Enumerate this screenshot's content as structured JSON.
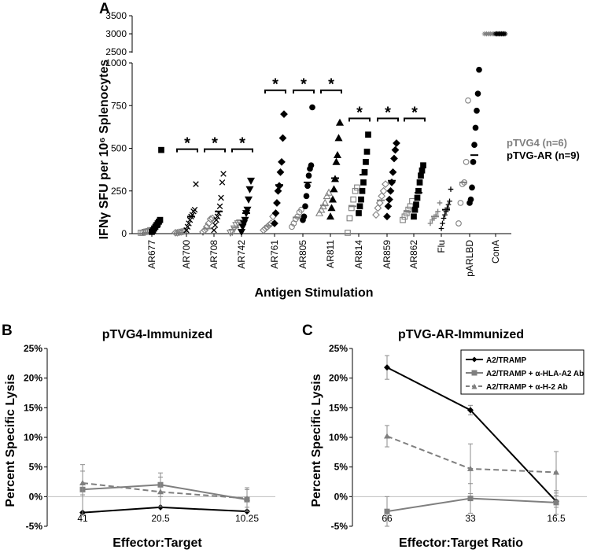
{
  "chart_data": [
    {
      "panel": "A",
      "type": "scatter",
      "xlabel": "Antigen Stimulation",
      "ylabel": "IFNγ SFU per 10⁶ Splenocytes",
      "ylim_lower": [
        0,
        1000
      ],
      "ylim_upper": [
        2500,
        3500
      ],
      "yticks_lower": [
        "0",
        "250",
        "500",
        "750",
        "1000"
      ],
      "yticks_upper": [
        "2500",
        "3000",
        "3500"
      ],
      "categories": [
        "AR677",
        "AR700",
        "AR708",
        "AR742",
        "AR761",
        "AR805",
        "AR811",
        "AR814",
        "AR859",
        "AR862",
        "Flu",
        "pARLBD",
        "ConA"
      ],
      "significance_marker": "*",
      "significant_categories": [
        "AR700",
        "AR708",
        "AR742",
        "AR761",
        "AR805",
        "AR811",
        "AR814",
        "AR859",
        "AR862"
      ],
      "legend": [
        {
          "name": "pTVG4 (n=6)",
          "color": "#808080"
        },
        {
          "name": "pTVG-AR (n=9)",
          "color": "#000000"
        }
      ],
      "series": [
        {
          "name": "pTVG4 (n=6)",
          "color": "#808080",
          "values": {
            "AR677": [
              5,
              5,
              10,
              12,
              15,
              20
            ],
            "AR700": [
              5,
              5,
              8,
              10,
              12,
              15
            ],
            "AR708": [
              10,
              20,
              40,
              60,
              85,
              90
            ],
            "AR742": [
              5,
              10,
              30,
              50,
              60,
              65
            ],
            "AR761": [
              20,
              30,
              40,
              50,
              60,
              100
            ],
            "AR805": [
              40,
              60,
              85,
              100,
              125,
              140
            ],
            "AR811": [
              120,
              140,
              160,
              180,
              220,
              240
            ],
            "AR814": [
              5,
              90,
              150,
              200,
              250,
              270
            ],
            "AR859": [
              110,
              150,
              180,
              220,
              250,
              290
            ],
            "AR862": [
              80,
              100,
              120,
              140,
              160,
              190
            ],
            "Flu": [
              60,
              80,
              90,
              110,
              130,
              180
            ],
            "pARLBD": [
              60,
              180,
              290,
              300,
              420,
              780
            ],
            "ConA": [
              3000,
              3000,
              3000,
              3000,
              3000,
              3000
            ]
          },
          "means": {
            "AR677": 5,
            "AR700": 5,
            "AR708": 30,
            "AR742": 35,
            "AR761": 45,
            "AR805": 95,
            "AR811": 165,
            "AR814": 160,
            "AR859": 195,
            "AR862": 130,
            "Flu": 100,
            "pARLBD": 300,
            "ConA": 3000
          }
        },
        {
          "name": "pTVG-AR (n=9)",
          "color": "#000000",
          "values": {
            "AR677": [
              10,
              20,
              30,
              40,
              50,
              60,
              70,
              80,
              490
            ],
            "AR700": [
              20,
              40,
              60,
              80,
              100,
              110,
              130,
              140,
              290
            ],
            "AR708": [
              20,
              50,
              80,
              100,
              120,
              160,
              210,
              300,
              350
            ],
            "AR742": [
              10,
              40,
              60,
              80,
              120,
              140,
              200,
              260,
              310
            ],
            "AR761": [
              60,
              120,
              180,
              250,
              280,
              360,
              420,
              560,
              700
            ],
            "AR805": [
              80,
              100,
              160,
              220,
              280,
              340,
              380,
              400,
              740
            ],
            "AR811": [
              100,
              150,
              200,
              260,
              320,
              420,
              460,
              560,
              650
            ],
            "AR814": [
              120,
              160,
              200,
              250,
              300,
              360,
              420,
              480,
              580
            ],
            "AR859": [
              100,
              160,
              200,
              250,
              300,
              360,
              440,
              490,
              530
            ],
            "AR862": [
              100,
              140,
              170,
              210,
              250,
              300,
              340,
              370,
              400
            ],
            "Flu": [
              30,
              60,
              90,
              110,
              130,
              150,
              170,
              190,
              260
            ],
            "pARLBD": [
              180,
              200,
              270,
              420,
              520,
              620,
              720,
              820,
              960
            ],
            "ConA": [
              3000,
              3000,
              3000,
              3000,
              3000,
              3000,
              3000,
              3000,
              3000
            ]
          },
          "means": {
            "AR677": 40,
            "AR700": 100,
            "AR708": 130,
            "AR742": 120,
            "AR761": 285,
            "AR805": 300,
            "AR811": 325,
            "AR814": 345,
            "AR859": 310,
            "AR862": 240,
            "Flu": 140,
            "pARLBD": 460,
            "ConA": 3000
          }
        }
      ]
    },
    {
      "panel": "B",
      "type": "line",
      "title": "pTVG4-Immunized",
      "xlabel": "Effector:Target",
      "ylabel": "Percent Specific Lysis",
      "categories": [
        "41",
        "20.5",
        "10.25"
      ],
      "yticks": [
        "-5%",
        "0%",
        "5%",
        "10%",
        "15%",
        "20%",
        "25%"
      ],
      "ylim": [
        -5,
        25
      ],
      "series": [
        {
          "key": "a2",
          "color": "#000000",
          "dash": false,
          "marker": "diamond",
          "values": [
            -2.7,
            -1.8,
            -2.5
          ],
          "errors": [
            0,
            0,
            0
          ]
        },
        {
          "key": "hla",
          "color": "#7f7f7f",
          "dash": false,
          "marker": "square",
          "values": [
            1.2,
            2.0,
            -0.5
          ],
          "errors": [
            4.2,
            2.0,
            2.0
          ]
        },
        {
          "key": "h2",
          "color": "#7f7f7f",
          "dash": true,
          "marker": "triangle",
          "values": [
            2.3,
            0.8,
            -0.3
          ],
          "errors": [
            2.0,
            2.5,
            1.5
          ]
        }
      ]
    },
    {
      "panel": "C",
      "type": "line",
      "title": "pTVG-AR-Immunized",
      "xlabel": "Effector:Target Ratio",
      "ylabel": "Percent Specific Lysis",
      "categories": [
        "66",
        "33",
        "16.5"
      ],
      "yticks": [
        "-5%",
        "0%",
        "5%",
        "10%",
        "15%",
        "20%",
        "25%"
      ],
      "ylim": [
        -5,
        25
      ],
      "series": [
        {
          "key": "a2",
          "name": "A2/TRAMP",
          "color": "#000000",
          "dash": false,
          "marker": "diamond",
          "values": [
            21.8,
            14.6,
            -0.8
          ],
          "errors": [
            2.0,
            0.8,
            1.0
          ]
        },
        {
          "key": "hla",
          "name": "A2/TRAMP + α-HLA-A2 Ab",
          "color": "#7f7f7f",
          "dash": false,
          "marker": "square",
          "values": [
            -2.5,
            -0.3,
            -1.0
          ],
          "errors": [
            2.5,
            2.5,
            2.0
          ]
        },
        {
          "key": "h2",
          "name": "A2/TRAMP + α-H-2 Ab",
          "color": "#7f7f7f",
          "dash": true,
          "marker": "triangle",
          "values": [
            10.2,
            4.7,
            4.1
          ],
          "errors": [
            1.8,
            4.2,
            3.5
          ]
        }
      ]
    }
  ],
  "labels": {
    "panel_a": "A",
    "panel_b": "B",
    "panel_c": "C"
  }
}
